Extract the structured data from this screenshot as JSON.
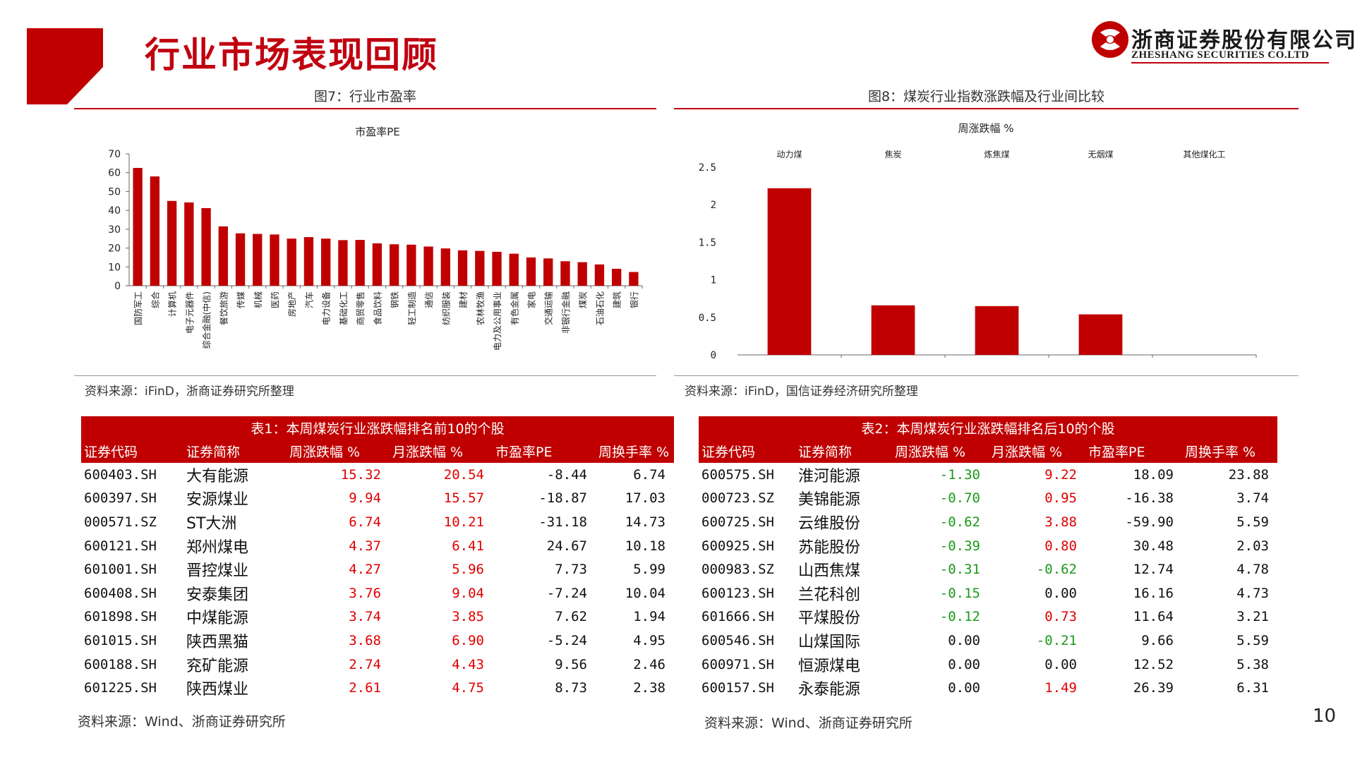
{
  "header": {
    "title": "行业市场表现回顾",
    "logo_cn": "浙商证券股份有限公司",
    "logo_en": "ZHESHANG SECURITIES CO.LTD"
  },
  "fig7": {
    "caption": "图7：行业市盈率",
    "source": "资料来源：iFinD，浙商证券研究所整理"
  },
  "fig8": {
    "caption": "图8：煤炭行业指数涨跌幅及行业间比较",
    "source": "资料来源：iFinD，国信证券经济研究所整理"
  },
  "chart_data": [
    {
      "type": "bar",
      "title": "市盈率PE",
      "categories": [
        "国防军工",
        "综合",
        "计算机",
        "电子元器件",
        "综合金融(中信)",
        "餐饮旅游",
        "传媒",
        "机械",
        "医药",
        "房地产",
        "汽车",
        "电力设备",
        "基础化工",
        "商贸零售",
        "食品饮料",
        "钢铁",
        "轻工制造",
        "通信",
        "纺织服装",
        "建材",
        "农林牧渔",
        "电力及公用事业",
        "有色金属",
        "家电",
        "交通运输",
        "非银行金融",
        "煤炭",
        "石油石化",
        "建筑",
        "银行"
      ],
      "values": [
        62.5,
        58,
        45,
        44.2,
        41.2,
        31.5,
        27.8,
        27.5,
        27.2,
        25,
        25.8,
        25,
        24.2,
        24.3,
        22.5,
        22,
        21.8,
        20.8,
        19.8,
        18.8,
        18.5,
        18,
        17,
        15,
        14.5,
        13,
        12.5,
        11.3,
        9,
        7.3
      ],
      "ylim": [
        0,
        70
      ],
      "yticks": [
        "70",
        "60",
        "50",
        "40",
        "30",
        "20",
        "10",
        "0"
      ],
      "color": "#c00000"
    },
    {
      "type": "bar",
      "title": "周涨跌幅 %",
      "categories": [
        "动力煤",
        "焦炭",
        "炼焦煤",
        "无烟煤",
        "其他煤化工"
      ],
      "values": [
        2.22,
        0.66,
        0.65,
        0.54,
        0
      ],
      "ylim": [
        0,
        2.5
      ],
      "yticks": [
        "2.5",
        "2",
        "1.5",
        "1",
        "0.5",
        "0"
      ],
      "color": "#c00000"
    }
  ],
  "table1": {
    "caption": "表1：本周煤炭行业涨跌幅排名前10的个股",
    "headers": [
      "证券代码",
      "证券简称",
      "周涨跌幅 %",
      "月涨跌幅 %",
      "市盈率PE",
      "周换手率 %"
    ],
    "rows": [
      [
        "600403.SH",
        "大有能源",
        "15.32",
        "20.54",
        "-8.44",
        "6.74"
      ],
      [
        "600397.SH",
        "安源煤业",
        "9.94",
        "15.57",
        "-18.87",
        "17.03"
      ],
      [
        "000571.SZ",
        "ST大洲",
        "6.74",
        "10.21",
        "-31.18",
        "14.73"
      ],
      [
        "600121.SH",
        "郑州煤电",
        "4.37",
        "6.41",
        "24.67",
        "10.18"
      ],
      [
        "601001.SH",
        "晋控煤业",
        "4.27",
        "5.96",
        "7.73",
        "5.99"
      ],
      [
        "600408.SH",
        "安泰集团",
        "3.76",
        "9.04",
        "-7.24",
        "10.04"
      ],
      [
        "601898.SH",
        "中煤能源",
        "3.74",
        "3.85",
        "7.62",
        "1.94"
      ],
      [
        "601015.SH",
        "陕西黑猫",
        "3.68",
        "6.90",
        "-5.24",
        "4.95"
      ],
      [
        "600188.SH",
        "兖矿能源",
        "2.74",
        "4.43",
        "9.56",
        "2.46"
      ],
      [
        "601225.SH",
        "陕西煤业",
        "2.61",
        "4.75",
        "8.73",
        "2.38"
      ]
    ],
    "source": "资料来源：Wind、浙商证券研究所"
  },
  "table2": {
    "caption": "表2：本周煤炭行业涨跌幅排名后10的个股",
    "headers": [
      "证券代码",
      "证券简称",
      "周涨跌幅 %",
      "月涨跌幅 %",
      "市盈率PE",
      "周换手率 %"
    ],
    "rows": [
      [
        "600575.SH",
        "淮河能源",
        "-1.30",
        "9.22",
        "18.09",
        "23.88"
      ],
      [
        "000723.SZ",
        "美锦能源",
        "-0.70",
        "0.95",
        "-16.38",
        "3.74"
      ],
      [
        "600725.SH",
        "云维股份",
        "-0.62",
        "3.88",
        "-59.90",
        "5.59"
      ],
      [
        "600925.SH",
        "苏能股份",
        "-0.39",
        "0.80",
        "30.48",
        "2.03"
      ],
      [
        "000983.SZ",
        "山西焦煤",
        "-0.31",
        "-0.62",
        "12.74",
        "4.78"
      ],
      [
        "600123.SH",
        "兰花科创",
        "-0.15",
        "0.00",
        "16.16",
        "4.73"
      ],
      [
        "601666.SH",
        "平煤股份",
        "-0.12",
        "0.73",
        "11.64",
        "3.21"
      ],
      [
        "600546.SH",
        "山煤国际",
        "0.00",
        "-0.21",
        "9.66",
        "5.59"
      ],
      [
        "600971.SH",
        "恒源煤电",
        "0.00",
        "0.00",
        "12.52",
        "5.38"
      ],
      [
        "600157.SH",
        "永泰能源",
        "0.00",
        "1.49",
        "26.39",
        "6.31"
      ]
    ],
    "source": "资料来源：Wind、浙商证券研究所"
  },
  "page_number": "10"
}
